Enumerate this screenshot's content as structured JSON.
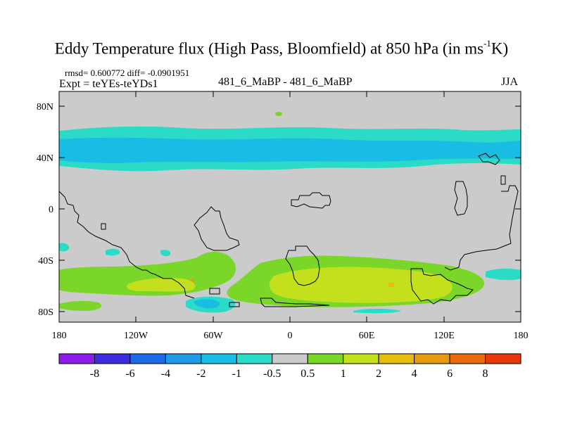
{
  "title": {
    "main": "Eddy Temperature flux (High Pass, Bloomfield) at 850 hPa (in ms",
    "sup": "-1",
    "end": "K)"
  },
  "stats": {
    "rmsd_diff": "rmsd= 0.600772 diff= -0.0901951",
    "expt": "Expt = teYEs-teYDs1"
  },
  "subtitle_center": "481_6_MaBP - 481_6_MaBP",
  "season": "JJA",
  "axes": {
    "lat_labels": [
      "80N",
      "40N",
      "0",
      "40S",
      "80S"
    ],
    "lon_labels": [
      "180",
      "120W",
      "60W",
      "0",
      "60E",
      "120E",
      "180"
    ]
  },
  "colorbar": {
    "colors": [
      "#8a1ee8",
      "#3c2ce0",
      "#1c6ae8",
      "#1e9ae6",
      "#19bde3",
      "#2adcc8",
      "#cbcbcb",
      "#7ad72a",
      "#c4e01c",
      "#e6bd0e",
      "#e69a10",
      "#e66a12",
      "#e6380c"
    ],
    "labels": [
      "-8",
      "-6",
      "-4",
      "-2",
      "-1",
      "-0.5",
      "0.5",
      "1",
      "2",
      "4",
      "6",
      "8"
    ]
  },
  "map_colors": {
    "background": "#cbcbcb",
    "neg_light": "#2adcc8",
    "neg_mid": "#19bde3",
    "pos_light": "#7ad72a",
    "pos_mid": "#c4e01c",
    "pos_high": "#e6bd0e",
    "pos_higher": "#e69a10"
  }
}
